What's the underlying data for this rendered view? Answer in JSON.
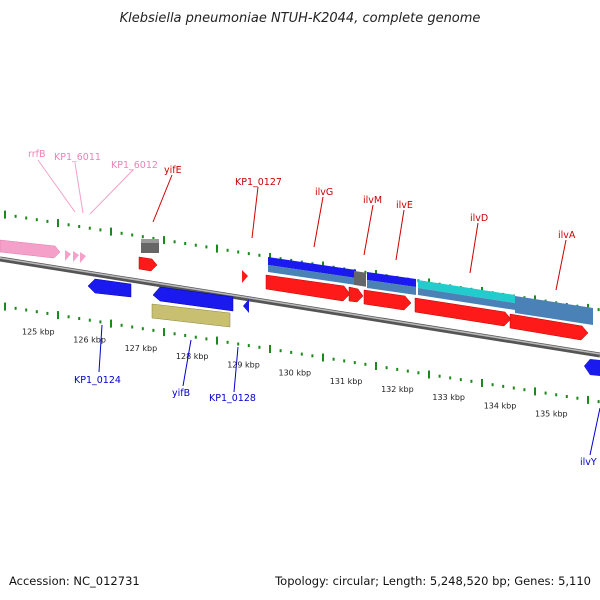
{
  "title": "Klebsiella pneumoniae NTUH-K2044, complete genome",
  "footer": {
    "accession": "Accession: NC_012731",
    "summary": "Topology: circular; Length: 5,248,520 bp; Genes: 5,110"
  },
  "axis_labels": [
    "125 kbp",
    "126 kbp",
    "127 kbp",
    "128 kbp",
    "129 kbp",
    "130 kbp",
    "131 kbp",
    "132 kbp",
    "133 kbp",
    "134 kbp",
    "135 kbp"
  ],
  "colors": {
    "rna": "#f5a0c8",
    "red": "#ff1a1a",
    "blue": "#1a1aee",
    "gray": "#777777",
    "steel": "#4a82b8",
    "cyan": "#22cccc",
    "khaki": "#c8c070",
    "tick": "#1a8a1a"
  },
  "labels_top": [
    {
      "text": "rrfB",
      "color": "#f080b8"
    },
    {
      "text": "KP1_6011",
      "color": "#f080b8"
    },
    {
      "text": "KP1_6012",
      "color": "#f080b8"
    },
    {
      "text": "yifE",
      "color": "#cc0000"
    },
    {
      "text": "KP1_0127",
      "color": "#cc0000"
    },
    {
      "text": "ilvG",
      "color": "#cc0000"
    },
    {
      "text": "ilvM",
      "color": "#cc0000"
    },
    {
      "text": "ilvE",
      "color": "#cc0000"
    },
    {
      "text": "ilvD",
      "color": "#cc0000"
    },
    {
      "text": "ilvA",
      "color": "#cc0000"
    }
  ],
  "labels_bottom": [
    {
      "text": "KP1_0124",
      "color": "#0000cc"
    },
    {
      "text": "yifB",
      "color": "#0000cc"
    },
    {
      "text": "KP1_0128",
      "color": "#0000cc"
    },
    {
      "text": "ilvY",
      "color": "#0000cc"
    }
  ]
}
